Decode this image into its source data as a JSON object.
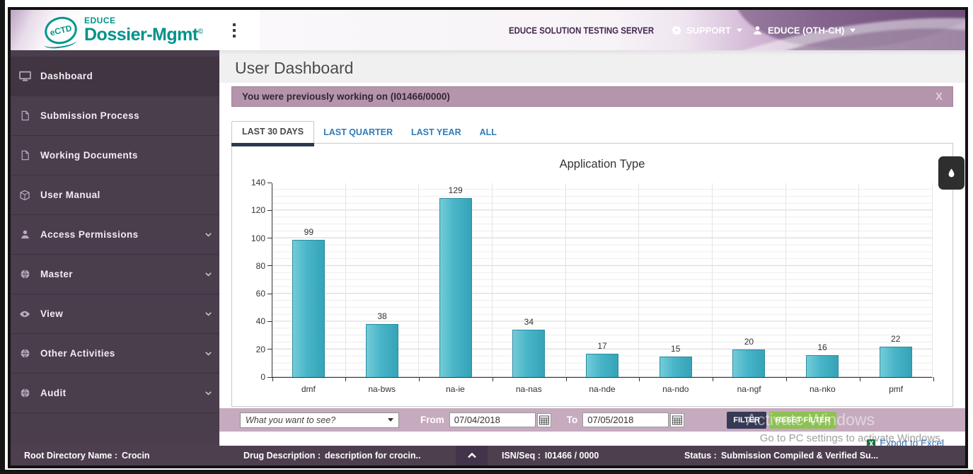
{
  "header": {
    "logo_badge": "eCTD",
    "brand_top": "EDUCE",
    "brand_main": "Dossier-Mgmt",
    "brand_sup": "©",
    "server_label": "EDUCE SOLUTION TESTING SERVER",
    "support_label": "SUPPORT",
    "user_label": "EDUCE (OTH-CH)"
  },
  "sidebar": {
    "items": [
      {
        "label": "Dashboard",
        "icon": "monitor-icon",
        "caret": false,
        "active": true
      },
      {
        "label": "Submission Process",
        "icon": "file-icon",
        "caret": false,
        "active": false
      },
      {
        "label": "Working Documents",
        "icon": "file-icon",
        "caret": false,
        "active": false
      },
      {
        "label": "User Manual",
        "icon": "cube-icon",
        "caret": false,
        "active": false
      },
      {
        "label": "Access Permissions",
        "icon": "person-icon",
        "caret": true,
        "active": false
      },
      {
        "label": "Master",
        "icon": "globe-icon",
        "caret": true,
        "active": false
      },
      {
        "label": "View",
        "icon": "eye-icon",
        "caret": true,
        "active": false
      },
      {
        "label": "Other Activities",
        "icon": "globe-icon",
        "caret": true,
        "active": false
      },
      {
        "label": "Audit",
        "icon": "globe-icon",
        "caret": true,
        "active": false
      }
    ]
  },
  "page": {
    "title": "User Dashboard"
  },
  "notification": {
    "text": "You were previously working on (I01466/0000)",
    "close_label": "X"
  },
  "tabs": [
    {
      "label": "LAST 30 DAYS",
      "active": true
    },
    {
      "label": "LAST QUARTER",
      "active": false
    },
    {
      "label": "LAST YEAR",
      "active": false
    },
    {
      "label": "ALL",
      "active": false
    }
  ],
  "chart_data": {
    "type": "bar",
    "title": "Application Type",
    "categories": [
      "dmf",
      "na-bws",
      "na-ie",
      "na-nas",
      "na-nde",
      "na-ndo",
      "na-ngf",
      "na-nko",
      "pmf"
    ],
    "values": [
      99,
      38,
      129,
      34,
      17,
      15,
      20,
      16,
      22
    ],
    "ylim": [
      0,
      140
    ],
    "ytick_step": 20,
    "bar_color": "#45b2c6",
    "grid": true,
    "legend": false
  },
  "filter_bar": {
    "dropdown_value": "What you want to see?",
    "from_label": "From",
    "from_value": "07/04/2018",
    "to_label": "To",
    "to_value": "07/05/2018",
    "filter_button": "FILTER",
    "reset_button": "RESET FILTER"
  },
  "watermark": {
    "line1": "Activate Windows",
    "line2": "Go to PC settings to activate Windows."
  },
  "export_link": "Export to Excel",
  "status_bar": {
    "items": [
      {
        "label": "Root Directory Name :",
        "value": "Crocin"
      },
      {
        "label": "Drug Description :",
        "value": "description for crocin.."
      },
      {
        "label": "ISN/Seq :",
        "value": "I01466 / 0000"
      },
      {
        "label": "Status :",
        "value": "Submission Compiled & Verified Su..."
      }
    ]
  },
  "colors": {
    "teal_brand": "#00938c",
    "bar_fill": "#45b2c6",
    "sidebar_bg": "#4a3d4c",
    "status_bg": "#4d3f4e",
    "notification_bg": "#b495ac",
    "filterbar_bg": "#c6abbf",
    "green_button": "#8dc153",
    "dark_button": "#363a55",
    "tab_link": "#2e7cba",
    "tab_underline": "#2d3a4d"
  }
}
